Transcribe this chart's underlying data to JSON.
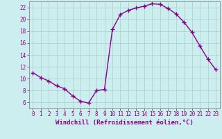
{
  "x": [
    0,
    1,
    2,
    3,
    4,
    5,
    6,
    7,
    8,
    9,
    10,
    11,
    12,
    13,
    14,
    15,
    16,
    17,
    18,
    19,
    20,
    21,
    22,
    23
  ],
  "y": [
    11.0,
    10.2,
    9.6,
    8.8,
    8.3,
    7.1,
    6.2,
    5.9,
    8.0,
    8.2,
    18.3,
    20.8,
    21.5,
    21.9,
    22.2,
    22.6,
    22.5,
    21.8,
    20.9,
    19.5,
    17.8,
    15.5,
    13.3,
    11.5
  ],
  "line_color": "#880088",
  "marker": "+",
  "marker_size": 4,
  "marker_lw": 1.0,
  "line_width": 1.0,
  "bg_color": "#cceeee",
  "grid_color": "#aacccc",
  "xlabel": "Windchill (Refroidissement éolien,°C)",
  "xlim": [
    -0.5,
    23.5
  ],
  "ylim": [
    5.0,
    23.0
  ],
  "yticks": [
    6,
    8,
    10,
    12,
    14,
    16,
    18,
    20,
    22
  ],
  "xticks": [
    0,
    1,
    2,
    3,
    4,
    5,
    6,
    7,
    8,
    9,
    10,
    11,
    12,
    13,
    14,
    15,
    16,
    17,
    18,
    19,
    20,
    21,
    22,
    23
  ],
  "tick_color": "#880088",
  "label_fontsize": 6.5,
  "tick_fontsize": 5.5,
  "spine_color": "#888888"
}
